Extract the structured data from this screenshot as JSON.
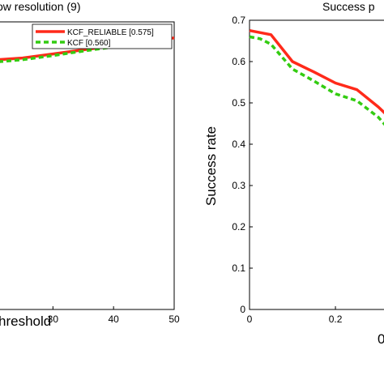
{
  "chart_data": [
    {
      "type": "line",
      "title": "ow resolution (9)",
      "xlabel": "hreshold",
      "ylabel": "",
      "xlim": [
        21,
        50
      ],
      "ylim": [
        0,
        0.7
      ],
      "x_ticks": [
        "30",
        "40",
        "50"
      ],
      "x_tick_values": [
        30,
        40,
        50
      ],
      "legend_position": "top-right",
      "series": [
        {
          "name": "KCF_RELIABLE [0.575]",
          "color": "#ff2a1a",
          "dash": "solid",
          "x": [
            21,
            25,
            30,
            35,
            40,
            45,
            50
          ],
          "y": [
            0.608,
            0.612,
            0.622,
            0.632,
            0.642,
            0.652,
            0.661
          ]
        },
        {
          "name": "KCF [0.560]",
          "color": "#33cc11",
          "dash": "dashed",
          "x": [
            21,
            25,
            30,
            35,
            40,
            45,
            50
          ],
          "y": [
            0.603,
            0.608,
            0.618,
            0.629,
            0.639,
            0.65,
            0.66
          ]
        }
      ]
    },
    {
      "type": "line",
      "title": "Success p",
      "xlabel": "",
      "ylabel": "Success rate",
      "xlim": [
        0,
        0.33
      ],
      "ylim": [
        0,
        0.7
      ],
      "x_ticks": [
        "0",
        "0.2"
      ],
      "x_tick_values": [
        0,
        0.2
      ],
      "y_ticks": [
        "0",
        "0.1",
        "0.2",
        "0.3",
        "0.4",
        "0.5",
        "0.6",
        "0.7"
      ],
      "y_tick_values": [
        0,
        0.1,
        0.2,
        0.3,
        0.4,
        0.5,
        0.6,
        0.7
      ],
      "series": [
        {
          "color": "#ff2a1a",
          "dash": "solid",
          "x": [
            0,
            0.05,
            0.1,
            0.15,
            0.2,
            0.25,
            0.3,
            0.33
          ],
          "y": [
            0.675,
            0.665,
            0.6,
            0.575,
            0.548,
            0.532,
            0.49,
            0.46
          ]
        },
        {
          "color": "#33cc11",
          "dash": "dashed",
          "x": [
            0,
            0.025,
            0.05,
            0.1,
            0.15,
            0.2,
            0.25,
            0.3,
            0.33
          ],
          "y": [
            0.66,
            0.655,
            0.642,
            0.582,
            0.553,
            0.522,
            0.505,
            0.465,
            0.43
          ]
        }
      ]
    }
  ],
  "right_edge_label": "0"
}
